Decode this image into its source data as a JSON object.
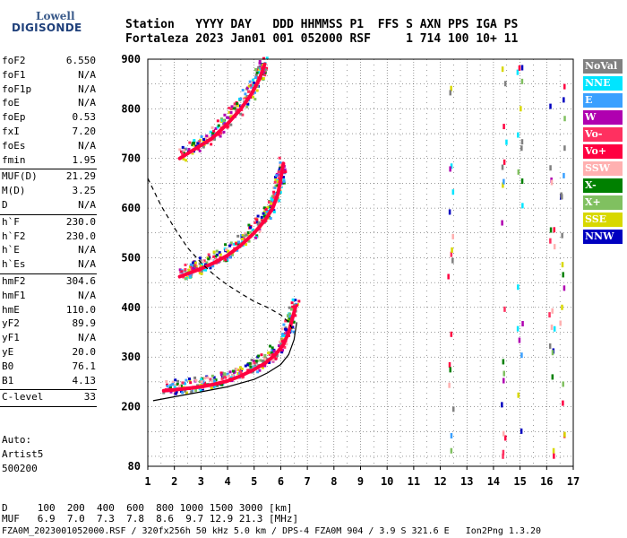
{
  "logo": {
    "line1": "Lowell",
    "line2": "DIGISONDE"
  },
  "header": {
    "labels": "Station   YYYY DAY   DDD HHMMSS P1  FFS S AXN PPS IGA PS",
    "values": "Fortaleza 2023 Jan01 001 052000 RSF     1 714 100 10+ 11"
  },
  "params": [
    {
      "name": "foF2",
      "value": "6.550"
    },
    {
      "name": "foF1",
      "value": "N/A"
    },
    {
      "name": "foF1p",
      "value": "N/A"
    },
    {
      "name": "foE",
      "value": "N/A"
    },
    {
      "name": "foEp",
      "value": "0.53"
    },
    {
      "name": "fxI",
      "value": "7.20"
    },
    {
      "name": "foEs",
      "value": "N/A"
    },
    {
      "name": "fmin",
      "value": "1.95"
    },
    {
      "name": "MUF(D)",
      "value": "21.29"
    },
    {
      "name": "M(D)",
      "value": "3.25"
    },
    {
      "name": "D",
      "value": "N/A"
    },
    {
      "name": "h`F",
      "value": "230.0"
    },
    {
      "name": "h`F2",
      "value": "230.0"
    },
    {
      "name": "h`E",
      "value": "N/A"
    },
    {
      "name": "h`Es",
      "value": "N/A"
    },
    {
      "name": "hmF2",
      "value": "304.6"
    },
    {
      "name": "hmF1",
      "value": "N/A"
    },
    {
      "name": "hmE",
      "value": "110.0"
    },
    {
      "name": "yF2",
      "value": "89.9"
    },
    {
      "name": "yF1",
      "value": "N/A"
    },
    {
      "name": "yE",
      "value": "20.0"
    },
    {
      "name": "B0",
      "value": "76.1"
    },
    {
      "name": "B1",
      "value": "4.13"
    },
    {
      "name": "C-level",
      "value": "33"
    }
  ],
  "auto": {
    "line1": "Auto:",
    "line2": "Artist5",
    "line3": "500200"
  },
  "legend": [
    {
      "label": "NoVal",
      "color": "#808080"
    },
    {
      "label": "NNE",
      "color": "#00e5ff"
    },
    {
      "label": "E",
      "color": "#3aa0ff"
    },
    {
      "label": "W",
      "color": "#b000b0"
    },
    {
      "label": "Vo-",
      "color": "#ff3060"
    },
    {
      "label": "Vo+",
      "color": "#ff0040"
    },
    {
      "label": "SSW",
      "color": "#ffb0b0"
    },
    {
      "label": "X-",
      "color": "#008000"
    },
    {
      "label": "X+",
      "color": "#80c060"
    },
    {
      "label": "SSE",
      "color": "#d8d800"
    },
    {
      "label": "NNW",
      "color": "#0000c0"
    }
  ],
  "bottom": {
    "d_line": "D     100  200  400  600  800 1000 1500 3000 [km]",
    "muf_line": "MUF   6.9  7.0  7.3  7.8  8.6  9.7 12.9 21.3 [MHz]",
    "info_line": "FZA0M_2023001052000.RSF / 320fx256h 50 kHz 5.0 km / DPS-4 FZA0M 904 / 3.9 S 321.6 E   Ion2Png 1.3.20"
  },
  "chart_data": {
    "type": "scatter",
    "xlim": [
      1,
      17
    ],
    "ylim": [
      80,
      900
    ],
    "xticks": [
      1,
      2,
      3,
      4,
      5,
      6,
      7,
      8,
      9,
      10,
      11,
      12,
      13,
      14,
      15,
      16,
      17
    ],
    "yticks": [
      80,
      200,
      300,
      400,
      500,
      600,
      700,
      800,
      900
    ],
    "xlabel": "",
    "ylabel": "",
    "grid": true,
    "traces": [
      {
        "name": "1st hop O",
        "points": [
          [
            1.6,
            232
          ],
          [
            2.0,
            234
          ],
          [
            2.5,
            237
          ],
          [
            3.0,
            240
          ],
          [
            3.5,
            245
          ],
          [
            4.0,
            252
          ],
          [
            4.5,
            262
          ],
          [
            5.0,
            275
          ],
          [
            5.4,
            287
          ],
          [
            5.8,
            305
          ],
          [
            6.1,
            325
          ],
          [
            6.3,
            350
          ],
          [
            6.45,
            380
          ],
          [
            6.55,
            400
          ]
        ]
      },
      {
        "name": "2nd hop",
        "points": [
          [
            2.2,
            462
          ],
          [
            2.6,
            470
          ],
          [
            3.0,
            478
          ],
          [
            3.5,
            490
          ],
          [
            4.0,
            505
          ],
          [
            4.5,
            525
          ],
          [
            5.0,
            550
          ],
          [
            5.4,
            575
          ],
          [
            5.7,
            600
          ],
          [
            5.9,
            630
          ],
          [
            6.0,
            660
          ],
          [
            6.1,
            690
          ]
        ]
      },
      {
        "name": "3rd hop",
        "points": [
          [
            2.2,
            700
          ],
          [
            2.8,
            720
          ],
          [
            3.4,
            740
          ],
          [
            4.0,
            770
          ],
          [
            4.5,
            800
          ],
          [
            4.9,
            830
          ],
          [
            5.2,
            860
          ],
          [
            5.4,
            890
          ]
        ]
      }
    ],
    "profile_solid": [
      [
        1.2,
        212
      ],
      [
        2.0,
        220
      ],
      [
        3.0,
        230
      ],
      [
        4.0,
        240
      ],
      [
        5.0,
        255
      ],
      [
        5.5,
        268
      ],
      [
        6.0,
        285
      ],
      [
        6.3,
        305
      ],
      [
        6.5,
        335
      ],
      [
        6.6,
        370
      ]
    ],
    "profile_dashed": [
      [
        1.0,
        660
      ],
      [
        1.5,
        605
      ],
      [
        2.0,
        560
      ],
      [
        2.5,
        520
      ],
      [
        3.0,
        490
      ],
      [
        3.5,
        465
      ],
      [
        4.0,
        445
      ],
      [
        4.5,
        428
      ],
      [
        5.0,
        412
      ],
      [
        5.5,
        400
      ],
      [
        6.0,
        385
      ],
      [
        6.3,
        370
      ],
      [
        6.5,
        350
      ]
    ],
    "trace_color": "#ff0040",
    "profile_color": "#000000"
  }
}
